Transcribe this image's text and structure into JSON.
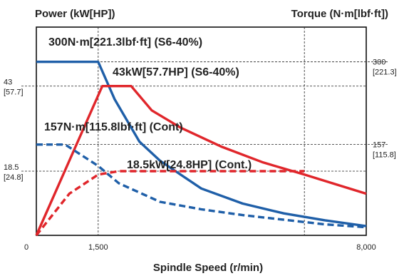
{
  "chart_data": {
    "type": "line",
    "title": "",
    "left_axis_label": "Power (kW[HP])",
    "right_axis_label": "Torque (N·m[lbf·ft])",
    "xlabel": "Spindle Speed (r/min)",
    "origin_label": "0",
    "xlim": [
      0,
      8000
    ],
    "x_ticks": [
      {
        "value": 1500,
        "label": "1,500"
      },
      {
        "value": 8000,
        "label": "8,000"
      }
    ],
    "power_ylim": [
      0,
      60
    ],
    "torque_ylim": [
      0,
      360
    ],
    "left_ticks": [
      {
        "value": 43,
        "label": "43",
        "sub": "[57.7]"
      },
      {
        "value": 18.5,
        "label": "18.5",
        "sub": "[24.8]"
      }
    ],
    "right_ticks": [
      {
        "value": 300,
        "label": "300",
        "sub": "[221.3]"
      },
      {
        "value": 157,
        "label": "157",
        "sub": "[115.8]"
      }
    ],
    "series": [
      {
        "name": "300N·m[221.3lbf·ft] (S6-40%)",
        "axis": "torque",
        "color": "#1f5fa8",
        "style": "solid",
        "x": [
          0,
          1500,
          1900,
          2500,
          3000,
          4000,
          5000,
          6000,
          7000,
          8000
        ],
        "y": [
          300,
          300,
          235,
          162,
          129,
          81,
          55,
          38,
          26,
          16
        ]
      },
      {
        "name": "43kW[57.7HP] (S6-40%)",
        "axis": "power",
        "color": "#e0262b",
        "style": "solid",
        "x": [
          0,
          1600,
          2300,
          2800,
          3500,
          4500,
          5500,
          6500,
          8000
        ],
        "y": [
          0,
          43,
          43,
          36,
          31,
          25.5,
          21,
          17.5,
          12
        ]
      },
      {
        "name": "157N·m[115.8lbf·ft] (Cont)",
        "axis": "torque",
        "color": "#1f5fa8",
        "style": "dashed",
        "x": [
          0,
          700,
          1500,
          2000,
          3000,
          4000,
          5000,
          6000,
          7000,
          8000
        ],
        "y": [
          157,
          157,
          120,
          90,
          58,
          45,
          35,
          27,
          19,
          14
        ]
      },
      {
        "name": "18.5kW[24.8HP] (Cont.)",
        "axis": "power",
        "color": "#e0262b",
        "style": "dashed",
        "x": [
          0,
          800,
          1500,
          2000,
          6500
        ],
        "y": [
          0,
          12,
          17.5,
          18.5,
          18.5
        ]
      }
    ],
    "annotations": [
      {
        "text": "300N·m[221.3lbf·ft] (S6-40%)",
        "series": 0
      },
      {
        "text": "43kW[57.7HP] (S6-40%)",
        "series": 1
      },
      {
        "text": "157N·m[115.8lbf·ft] (Cont)",
        "series": 2
      },
      {
        "text": "18.5kW[24.8HP] (Cont.)",
        "series": 3
      }
    ],
    "guides_x": [
      1500,
      6500
    ],
    "grid": false,
    "legend": "none"
  }
}
